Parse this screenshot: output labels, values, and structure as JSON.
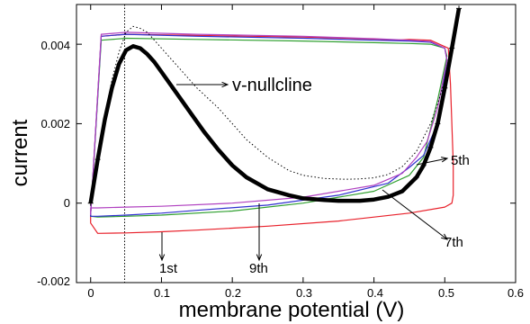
{
  "chart_data": {
    "type": "line",
    "title": "",
    "xlabel": "membrane potential (V)",
    "ylabel": "current",
    "xlim": [
      -0.02,
      0.6
    ],
    "ylim": [
      -0.002,
      0.005
    ],
    "xticks": [
      "0",
      "0.1",
      "0.2",
      "0.3",
      "0.4",
      "0.5",
      "0.6"
    ],
    "yticks": [
      "-0.002",
      "0",
      "0.002",
      "0.004"
    ],
    "xtick_values": [
      0,
      0.1,
      0.2,
      0.3,
      0.4,
      0.5,
      0.6
    ],
    "ytick_values": [
      -0.002,
      0,
      0.002,
      0.004
    ],
    "grid": false,
    "series": [
      {
        "name": "1st",
        "color": "#e8202a",
        "x": [
          0,
          0.015,
          0.05,
          0.15,
          0.3,
          0.4,
          0.43,
          0.45,
          0.48,
          0.505,
          0.508,
          0.512,
          0.512,
          0.51,
          0.5,
          0.45,
          0.35,
          0.25,
          0.15,
          0.1,
          0.05,
          0.01,
          0,
          0
        ],
        "y": [
          -0.0003,
          0.0042,
          0.00425,
          0.00422,
          0.00418,
          0.00413,
          0.0041,
          0.00412,
          0.0041,
          0.0039,
          0.003,
          0.001,
          0.0002,
          0.0,
          -0.0001,
          -0.00025,
          -0.00045,
          -0.00058,
          -0.00068,
          -0.00072,
          -0.00075,
          -0.00076,
          -0.0005,
          -0.0003
        ]
      },
      {
        "name": "",
        "color": "#30a030",
        "x": [
          0,
          0.015,
          0.05,
          0.15,
          0.3,
          0.4,
          0.45,
          0.48,
          0.5,
          0.503,
          0.49,
          0.47,
          0.45,
          0.4,
          0.3,
          0.2,
          0.1,
          0.05,
          0.01,
          0,
          0
        ],
        "y": [
          -0.0003,
          0.0041,
          0.00415,
          0.00412,
          0.00408,
          0.00404,
          0.00402,
          0.004,
          0.0039,
          0.0037,
          0.0026,
          0.00115,
          0.0007,
          0.0003,
          0.0,
          -0.0002,
          -0.0003,
          -0.00033,
          -0.00035,
          -0.00033,
          -0.0003
        ]
      },
      {
        "name": "7th",
        "color": "#3030d0",
        "x": [
          0,
          0.015,
          0.05,
          0.15,
          0.3,
          0.4,
          0.45,
          0.48,
          0.5,
          0.503,
          0.49,
          0.47,
          0.45,
          0.42,
          0.35,
          0.25,
          0.15,
          0.1,
          0.05,
          0.01,
          0,
          0
        ],
        "y": [
          -0.0003,
          0.0042,
          0.00425,
          0.0042,
          0.00415,
          0.0041,
          0.00408,
          0.00405,
          0.0039,
          0.0036,
          0.002,
          0.0012,
          0.0009,
          0.0005,
          0.0002,
          -5e-05,
          -0.00018,
          -0.00025,
          -0.0003,
          -0.00033,
          -0.00033,
          -0.0003
        ]
      },
      {
        "name": "9th",
        "color": "#b040c0",
        "x": [
          0,
          0.015,
          0.05,
          0.15,
          0.3,
          0.4,
          0.45,
          0.48,
          0.5,
          0.503,
          0.49,
          0.475,
          0.46,
          0.44,
          0.4,
          0.3,
          0.2,
          0.1,
          0.05,
          0.01,
          0,
          0
        ],
        "y": [
          -0.0003,
          0.00425,
          0.0043,
          0.00425,
          0.0042,
          0.00414,
          0.0041,
          0.00407,
          0.0039,
          0.0036,
          0.0024,
          0.00155,
          0.00115,
          0.00075,
          0.00045,
          0.00015,
          0.0,
          -8e-05,
          -0.0001,
          -0.00012,
          -0.00012,
          -0.0003
        ]
      },
      {
        "name": "v-nullcline",
        "style": "thick",
        "color": "#000000",
        "x": [
          0,
          0.01,
          0.02,
          0.03,
          0.04,
          0.05,
          0.06,
          0.07,
          0.08,
          0.09,
          0.1,
          0.12,
          0.14,
          0.16,
          0.18,
          0.2,
          0.22,
          0.25,
          0.28,
          0.3,
          0.33,
          0.35,
          0.38,
          0.4,
          0.42,
          0.44,
          0.46,
          0.47,
          0.48,
          0.49,
          0.5,
          0.51,
          0.52
        ],
        "y": [
          0.0,
          0.0011,
          0.0021,
          0.0029,
          0.0035,
          0.00385,
          0.00395,
          0.0039,
          0.00375,
          0.00355,
          0.0033,
          0.0028,
          0.0023,
          0.0018,
          0.00135,
          0.00095,
          0.00065,
          0.00035,
          0.0002,
          0.00012,
          8e-05,
          6e-05,
          6e-05,
          9e-05,
          0.00016,
          0.0003,
          0.00065,
          0.00095,
          0.0014,
          0.002,
          0.0029,
          0.0039,
          0.0049
        ]
      },
      {
        "name": "",
        "style": "dotted",
        "color": "#000000",
        "x": [
          0,
          0.01,
          0.02,
          0.03,
          0.04,
          0.05,
          0.06,
          0.07,
          0.08,
          0.09,
          0.1,
          0.12,
          0.15,
          0.18,
          0.2,
          0.22,
          0.25,
          0.28,
          0.3,
          0.33,
          0.36,
          0.38,
          0.4,
          0.42,
          0.44,
          0.46,
          0.48,
          0.49,
          0.5
        ],
        "y": [
          0.0,
          0.0011,
          0.0022,
          0.0031,
          0.0038,
          0.0043,
          0.00445,
          0.0044,
          0.0043,
          0.0041,
          0.0039,
          0.0035,
          0.0029,
          0.0024,
          0.002,
          0.0016,
          0.00115,
          0.00082,
          0.0007,
          0.00062,
          0.0006,
          0.00061,
          0.00064,
          0.00072,
          0.00092,
          0.0013,
          0.002,
          0.0025,
          0.0031
        ]
      }
    ],
    "vertical_line": {
      "x": 0.048,
      "style": "dotted"
    },
    "annotations": [
      {
        "text": "v-nullcline",
        "size": "big"
      },
      {
        "text": "5th"
      },
      {
        "text": "7th"
      },
      {
        "text": "1st"
      },
      {
        "text": "9th"
      }
    ]
  }
}
